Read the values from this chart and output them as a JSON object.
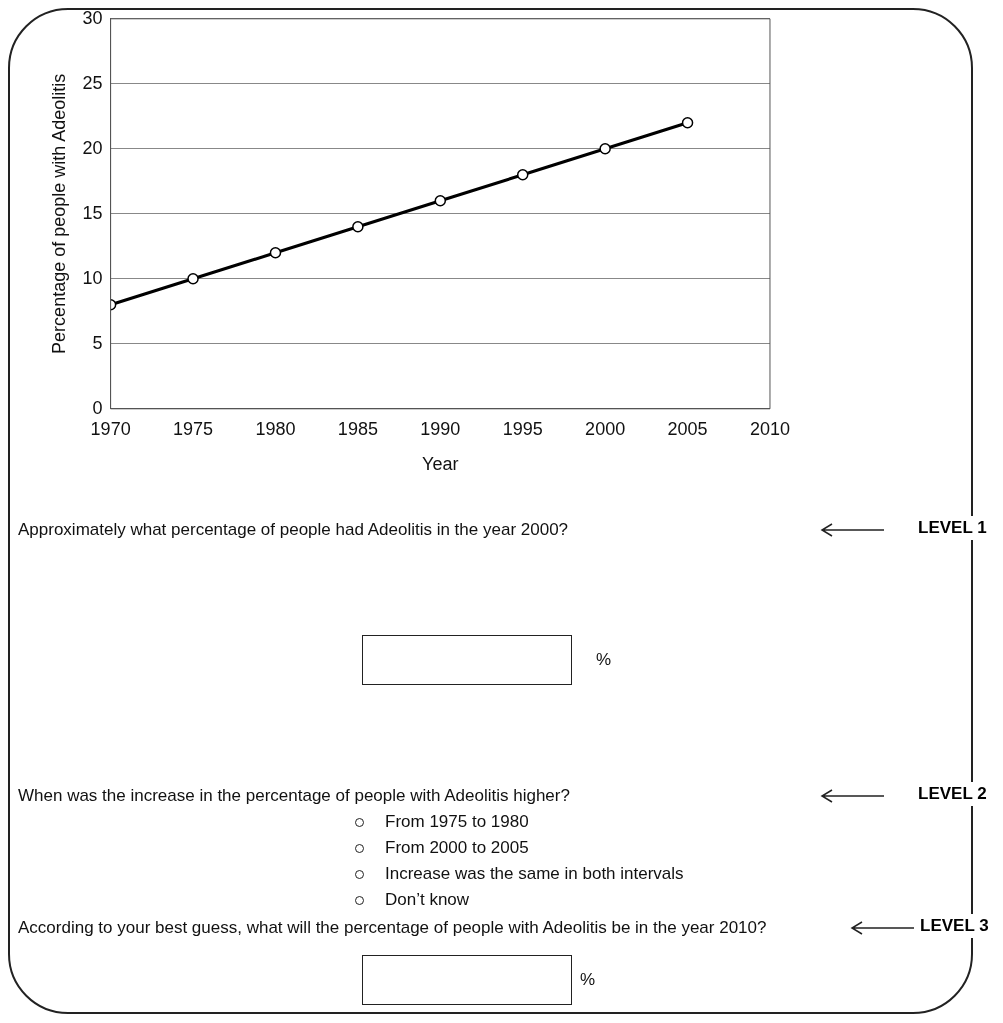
{
  "chart_data": {
    "type": "line",
    "xlabel": "Year",
    "ylabel": "Percentage of people with Adeolitis",
    "x": [
      1970,
      1975,
      1980,
      1985,
      1990,
      1995,
      2000,
      2005
    ],
    "series": [
      {
        "color": "#000000",
        "values": [
          8,
          10,
          12,
          14,
          16,
          18,
          20,
          22
        ]
      }
    ],
    "xlim": [
      1970,
      2010
    ],
    "xticks": [
      1970,
      1975,
      1980,
      1985,
      1990,
      1995,
      2000,
      2005,
      2010
    ],
    "ylim": [
      0,
      30
    ],
    "yticks": [
      0,
      5,
      10,
      15,
      20,
      25,
      30
    ],
    "grid": "y",
    "legend": false,
    "marker": "circle",
    "line_style": "solid",
    "annotations": [
      "Approximately what percentage of people had Adeolitis in the year 2000?",
      "%",
      "LEVEL 1",
      "When was the increase in the percentage of people with Adeolitis higher?",
      "From 1975 to 1980",
      "From 2000 to 2005",
      "Increase was the same in both intervals",
      "Don’t know",
      "LEVEL 2",
      "According to your best guess, what will the percentage of people with Adeolitis be in the year 2010?",
      "%",
      "LEVEL 3"
    ]
  }
}
